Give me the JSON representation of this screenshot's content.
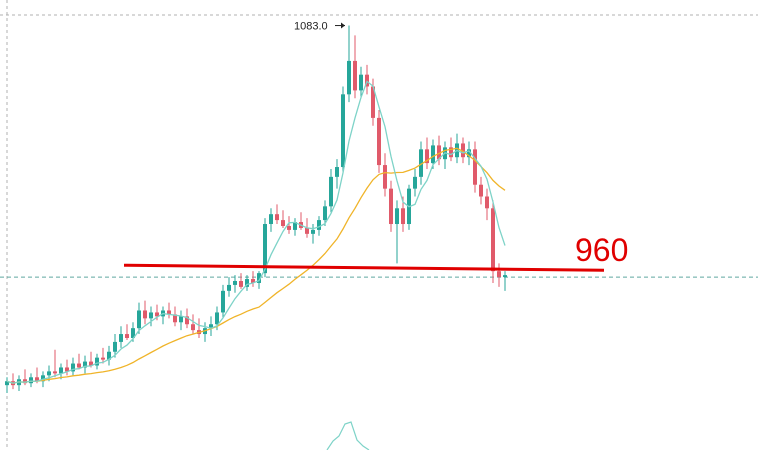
{
  "chart_data": {
    "type": "candlestick",
    "title": "",
    "xlabel": "",
    "ylabel": "",
    "ylim": [
      867,
      1096
    ],
    "grid": false,
    "annotations": {
      "peak_label": "1083.0",
      "level_label": "960",
      "level_value": 960,
      "peak_value": 1083.0,
      "current_price_line": 955
    },
    "colors": {
      "up": "#26a69a",
      "down": "#e05a6a",
      "ma_fast": "#7ed3c8",
      "ma_slow": "#f0b429",
      "level_line": "#e00000",
      "level_text": "#e00000",
      "price_line": "#5fa8a0",
      "border_dash": "#b0b0b0"
    },
    "candles": [
      {
        "o": 900,
        "h": 904,
        "l": 896,
        "c": 902
      },
      {
        "o": 902,
        "h": 906,
        "l": 898,
        "c": 900
      },
      {
        "o": 900,
        "h": 905,
        "l": 897,
        "c": 903
      },
      {
        "o": 903,
        "h": 908,
        "l": 900,
        "c": 901
      },
      {
        "o": 901,
        "h": 906,
        "l": 899,
        "c": 904
      },
      {
        "o": 904,
        "h": 909,
        "l": 901,
        "c": 902
      },
      {
        "o": 902,
        "h": 907,
        "l": 899,
        "c": 905
      },
      {
        "o": 905,
        "h": 910,
        "l": 902,
        "c": 907
      },
      {
        "o": 907,
        "h": 918,
        "l": 904,
        "c": 906
      },
      {
        "o": 906,
        "h": 911,
        "l": 903,
        "c": 909
      },
      {
        "o": 909,
        "h": 913,
        "l": 905,
        "c": 907
      },
      {
        "o": 907,
        "h": 914,
        "l": 905,
        "c": 911
      },
      {
        "o": 911,
        "h": 916,
        "l": 908,
        "c": 909
      },
      {
        "o": 909,
        "h": 915,
        "l": 906,
        "c": 912
      },
      {
        "o": 912,
        "h": 917,
        "l": 909,
        "c": 910
      },
      {
        "o": 910,
        "h": 916,
        "l": 908,
        "c": 914
      },
      {
        "o": 914,
        "h": 919,
        "l": 911,
        "c": 913
      },
      {
        "o": 913,
        "h": 920,
        "l": 910,
        "c": 917
      },
      {
        "o": 917,
        "h": 926,
        "l": 914,
        "c": 922
      },
      {
        "o": 922,
        "h": 930,
        "l": 919,
        "c": 926
      },
      {
        "o": 926,
        "h": 931,
        "l": 923,
        "c": 924
      },
      {
        "o": 924,
        "h": 932,
        "l": 922,
        "c": 929
      },
      {
        "o": 929,
        "h": 942,
        "l": 926,
        "c": 938
      },
      {
        "o": 938,
        "h": 943,
        "l": 931,
        "c": 934
      },
      {
        "o": 934,
        "h": 940,
        "l": 930,
        "c": 937
      },
      {
        "o": 937,
        "h": 941,
        "l": 933,
        "c": 935
      },
      {
        "o": 935,
        "h": 940,
        "l": 931,
        "c": 938
      },
      {
        "o": 938,
        "h": 942,
        "l": 934,
        "c": 936
      },
      {
        "o": 936,
        "h": 940,
        "l": 930,
        "c": 932
      },
      {
        "o": 932,
        "h": 938,
        "l": 928,
        "c": 935
      },
      {
        "o": 935,
        "h": 939,
        "l": 929,
        "c": 931
      },
      {
        "o": 931,
        "h": 936,
        "l": 926,
        "c": 928
      },
      {
        "o": 928,
        "h": 934,
        "l": 924,
        "c": 926
      },
      {
        "o": 926,
        "h": 932,
        "l": 922,
        "c": 929
      },
      {
        "o": 929,
        "h": 935,
        "l": 925,
        "c": 931
      },
      {
        "o": 931,
        "h": 940,
        "l": 928,
        "c": 937
      },
      {
        "o": 937,
        "h": 951,
        "l": 934,
        "c": 948
      },
      {
        "o": 948,
        "h": 955,
        "l": 945,
        "c": 951
      },
      {
        "o": 951,
        "h": 956,
        "l": 947,
        "c": 953
      },
      {
        "o": 953,
        "h": 957,
        "l": 949,
        "c": 950
      },
      {
        "o": 950,
        "h": 956,
        "l": 948,
        "c": 954
      },
      {
        "o": 954,
        "h": 958,
        "l": 950,
        "c": 952
      },
      {
        "o": 952,
        "h": 958,
        "l": 949,
        "c": 957
      },
      {
        "o": 957,
        "h": 985,
        "l": 955,
        "c": 982
      },
      {
        "o": 982,
        "h": 990,
        "l": 978,
        "c": 987
      },
      {
        "o": 987,
        "h": 992,
        "l": 982,
        "c": 984
      },
      {
        "o": 984,
        "h": 989,
        "l": 980,
        "c": 981
      },
      {
        "o": 981,
        "h": 986,
        "l": 977,
        "c": 979
      },
      {
        "o": 979,
        "h": 985,
        "l": 976,
        "c": 983
      },
      {
        "o": 983,
        "h": 988,
        "l": 979,
        "c": 980
      },
      {
        "o": 980,
        "h": 985,
        "l": 975,
        "c": 977
      },
      {
        "o": 977,
        "h": 982,
        "l": 972,
        "c": 979
      },
      {
        "o": 979,
        "h": 986,
        "l": 976,
        "c": 984
      },
      {
        "o": 984,
        "h": 994,
        "l": 981,
        "c": 991
      },
      {
        "o": 991,
        "h": 1010,
        "l": 988,
        "c": 1006
      },
      {
        "o": 1006,
        "h": 1015,
        "l": 1000,
        "c": 1011
      },
      {
        "o": 1011,
        "h": 1052,
        "l": 1008,
        "c": 1048
      },
      {
        "o": 1048,
        "h": 1083,
        "l": 1044,
        "c": 1065
      },
      {
        "o": 1065,
        "h": 1078,
        "l": 1046,
        "c": 1050
      },
      {
        "o": 1050,
        "h": 1062,
        "l": 1046,
        "c": 1058
      },
      {
        "o": 1058,
        "h": 1063,
        "l": 1048,
        "c": 1052
      },
      {
        "o": 1052,
        "h": 1056,
        "l": 1032,
        "c": 1036
      },
      {
        "o": 1036,
        "h": 1040,
        "l": 1008,
        "c": 1012
      },
      {
        "o": 1012,
        "h": 1018,
        "l": 996,
        "c": 1000
      },
      {
        "o": 1000,
        "h": 1004,
        "l": 978,
        "c": 982
      },
      {
        "o": 982,
        "h": 994,
        "l": 962,
        "c": 990
      },
      {
        "o": 990,
        "h": 996,
        "l": 978,
        "c": 982
      },
      {
        "o": 982,
        "h": 1002,
        "l": 979,
        "c": 1000
      },
      {
        "o": 1000,
        "h": 1010,
        "l": 996,
        "c": 1006
      },
      {
        "o": 1006,
        "h": 1024,
        "l": 1002,
        "c": 1020
      },
      {
        "o": 1020,
        "h": 1026,
        "l": 1010,
        "c": 1013
      },
      {
        "o": 1013,
        "h": 1025,
        "l": 1010,
        "c": 1022
      },
      {
        "o": 1022,
        "h": 1027,
        "l": 1012,
        "c": 1015
      },
      {
        "o": 1015,
        "h": 1024,
        "l": 1010,
        "c": 1021
      },
      {
        "o": 1021,
        "h": 1026,
        "l": 1014,
        "c": 1016
      },
      {
        "o": 1016,
        "h": 1028,
        "l": 1013,
        "c": 1023
      },
      {
        "o": 1023,
        "h": 1026,
        "l": 1013,
        "c": 1016
      },
      {
        "o": 1016,
        "h": 1024,
        "l": 1012,
        "c": 1020
      },
      {
        "o": 1020,
        "h": 1024,
        "l": 998,
        "c": 1002
      },
      {
        "o": 1002,
        "h": 1006,
        "l": 992,
        "c": 996
      },
      {
        "o": 996,
        "h": 1000,
        "l": 984,
        "c": 990
      },
      {
        "o": 990,
        "h": 994,
        "l": 952,
        "c": 958
      },
      {
        "o": 958,
        "h": 962,
        "l": 950,
        "c": 955
      },
      {
        "o": 955,
        "h": 958,
        "l": 948,
        "c": 956
      }
    ]
  }
}
